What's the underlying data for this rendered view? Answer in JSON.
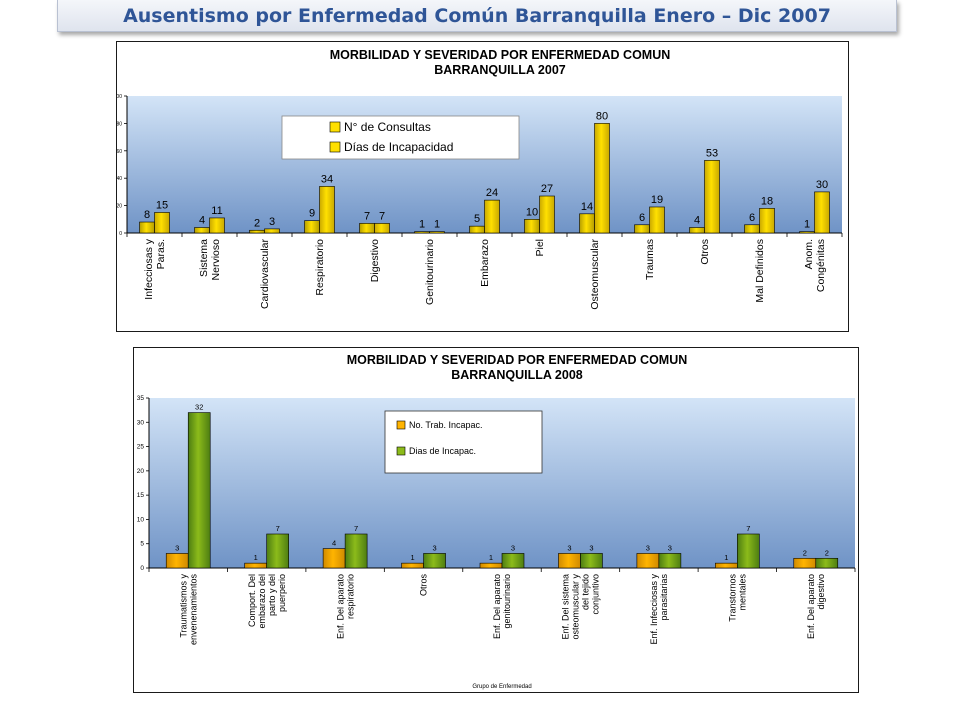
{
  "header": {
    "title": "Ausentismo por Enfermedad Común Barranquilla  Enero – Dic 2007"
  },
  "colors": {
    "bar_yellow": "#ffe000",
    "bar_olive": "#8cbb1a",
    "bar_green_dark": "#4d7d12",
    "bar_orange": "#ffb400",
    "plot_top": "#d3e4f7",
    "plot_bottom": "#6f93c6",
    "title_text": "#2f5597"
  },
  "chart_data": [
    {
      "type": "bar",
      "title_lines": [
        "MORBILIDAD Y SEVERIDAD POR ENFERMEDAD COMUN",
        "BARRANQUILLA 2007"
      ],
      "categories": [
        [
          "Infecciosas y",
          "Paras."
        ],
        [
          "Sistema",
          "Nervioso"
        ],
        [
          "Cardiovascular"
        ],
        [
          "Respiratorio"
        ],
        [
          "Digestivo"
        ],
        [
          "Genitourinario"
        ],
        [
          "Embarazo"
        ],
        [
          "Piel"
        ],
        [
          "Osteomuscular"
        ],
        [
          "Traumas"
        ],
        [
          "Otros"
        ],
        [
          "Mal Definidos"
        ],
        [
          "Anom.",
          "Congénitas"
        ]
      ],
      "series": [
        {
          "name": "N° de Consultas",
          "values": [
            8,
            4,
            2,
            9,
            7,
            1,
            5,
            10,
            14,
            6,
            4,
            6,
            1
          ]
        },
        {
          "name": "Días de Incapacidad",
          "values": [
            15,
            11,
            3,
            34,
            7,
            1,
            24,
            27,
            80,
            19,
            53,
            18,
            30
          ]
        }
      ],
      "ylim": [
        0,
        100
      ],
      "yticks": [
        0,
        20,
        40,
        60,
        80,
        100
      ],
      "xlabel": "",
      "ylabel": "",
      "legend_position": "top-center",
      "grid": false
    },
    {
      "type": "bar",
      "title_lines": [
        "MORBILIDAD Y SEVERIDAD POR ENFERMEDAD COMUN",
        "BARRANQUILLA 2008"
      ],
      "categories": [
        [
          "Traumatismos y",
          "envenenamientos"
        ],
        [
          "Comport. Del",
          "embarazo del",
          "parto y del",
          "puerperio"
        ],
        [
          "Enf. Del aparato",
          "respiratorio"
        ],
        [
          "Otros"
        ],
        [
          "Enf. Del aparato",
          "genitourinario"
        ],
        [
          "Enf. Del sistema",
          "osteomuscular y",
          "del tejido",
          "conjuntivo"
        ],
        [
          "Enf. Infecciosas y",
          "parasitarias"
        ],
        [
          "Transtornos",
          "mentales"
        ],
        [
          "Enf. Del aparato",
          "digestivo"
        ]
      ],
      "series": [
        {
          "name": "No. Trab. Incapac.",
          "values": [
            3,
            1,
            4,
            1,
            1,
            3,
            3,
            1,
            2
          ]
        },
        {
          "name": "Dias de Incapac.",
          "values": [
            32,
            7,
            7,
            3,
            3,
            3,
            3,
            7,
            2
          ]
        }
      ],
      "ylim": [
        0,
        35
      ],
      "yticks": [
        0,
        5,
        10,
        15,
        20,
        25,
        30,
        35
      ],
      "xlabel": "Grupo de Enfermedad",
      "ylabel": "",
      "legend_position": "top-center",
      "grid": false
    }
  ]
}
